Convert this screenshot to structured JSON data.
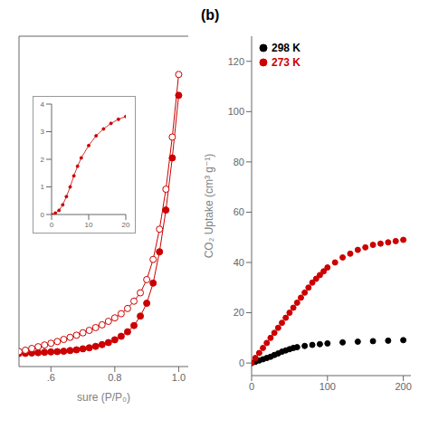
{
  "chart_data": [
    {
      "type": "line",
      "xlabel": "sure (P/P₀)",
      "xlim": [
        0.5,
        1.03
      ],
      "ylim": [
        0,
        950
      ],
      "xticks": [
        {
          "value": 0.6,
          "label": ".6"
        },
        0.8,
        {
          "value": 1.0,
          "label": "1.0"
        }
      ],
      "tick_labels": "x",
      "series": [
        {
          "color": "#cc0000",
          "marker": "circle",
          "x": [
            0.5,
            0.52,
            0.54,
            0.56,
            0.58,
            0.6,
            0.62,
            0.64,
            0.66,
            0.68,
            0.7,
            0.72,
            0.74,
            0.76,
            0.78,
            0.8,
            0.82,
            0.84,
            0.86,
            0.88,
            0.9,
            0.92,
            0.94,
            0.96,
            0.98,
            1.0
          ],
          "values": [
            38,
            38,
            39,
            40,
            41,
            42,
            43,
            44,
            46,
            48,
            51,
            54,
            58,
            63,
            69,
            77,
            87,
            100,
            118,
            145,
            182,
            240,
            330,
            450,
            600,
            780
          ]
        },
        {
          "color": "#cc0000",
          "marker": "open_circle",
          "x": [
            1.0,
            0.98,
            0.96,
            0.94,
            0.92,
            0.9,
            0.88,
            0.86,
            0.84,
            0.82,
            0.8,
            0.78,
            0.76,
            0.74,
            0.72,
            0.7,
            0.68,
            0.66,
            0.64,
            0.62,
            0.6,
            0.58,
            0.56,
            0.54,
            0.52,
            0.5
          ],
          "values": [
            840,
            660,
            510,
            395,
            308,
            250,
            212,
            188,
            167,
            152,
            140,
            130,
            120,
            112,
            104,
            97,
            90,
            84,
            78,
            72,
            67,
            62,
            57,
            52,
            47,
            43
          ]
        }
      ]
    },
    {
      "type": "line",
      "xlim": [
        0,
        20
      ],
      "ylim": [
        0,
        4
      ],
      "xticks": [
        0,
        10,
        20
      ],
      "yticks": [
        0,
        1,
        2,
        3,
        4
      ],
      "series": [
        {
          "color": "#cc0000",
          "marker": "circle",
          "x": [
            0,
            1,
            2,
            3,
            4,
            5,
            6,
            7,
            8,
            10,
            12,
            14,
            16,
            18,
            20
          ],
          "values": [
            0.0,
            0.05,
            0.15,
            0.35,
            0.65,
            1.0,
            1.4,
            1.75,
            2.05,
            2.5,
            2.85,
            3.1,
            3.3,
            3.45,
            3.55
          ]
        }
      ]
    },
    {
      "type": "scatter",
      "title": "(b)",
      "ylabel": "CO₂ Uptake (cm³ g⁻¹)",
      "xlim": [
        0,
        210
      ],
      "ylim": [
        -5,
        130
      ],
      "xticks": [
        0,
        100,
        200
      ],
      "yticks": [
        0,
        20,
        40,
        60,
        80,
        100,
        120
      ],
      "legend": "upper left",
      "series": [
        {
          "name": "298 K",
          "color": "#000000",
          "marker": "circle",
          "x": [
            0,
            5,
            10,
            15,
            20,
            25,
            30,
            35,
            40,
            45,
            50,
            55,
            60,
            70,
            80,
            90,
            100,
            120,
            140,
            160,
            180,
            200
          ],
          "values": [
            0,
            0.5,
            1.0,
            1.5,
            2.0,
            2.5,
            3.2,
            3.8,
            4.5,
            5.0,
            5.5,
            6.0,
            6.3,
            6.8,
            7.2,
            7.5,
            7.8,
            8.2,
            8.5,
            8.7,
            8.9,
            9.1
          ]
        },
        {
          "name": "273 K",
          "color": "#cc0000",
          "marker": "circle",
          "x": [
            0,
            5,
            10,
            15,
            20,
            25,
            30,
            35,
            40,
            45,
            50,
            55,
            60,
            65,
            70,
            75,
            80,
            85,
            90,
            95,
            100,
            110,
            120,
            130,
            140,
            150,
            160,
            170,
            180,
            190,
            200
          ],
          "values": [
            0,
            2,
            4,
            6,
            8,
            10,
            12,
            14,
            16,
            18,
            20,
            22,
            24,
            26,
            28,
            30,
            32,
            33.5,
            35,
            36.5,
            38,
            40,
            42,
            43.5,
            45,
            46,
            47,
            47.5,
            48,
            48.5,
            49
          ]
        }
      ]
    }
  ]
}
